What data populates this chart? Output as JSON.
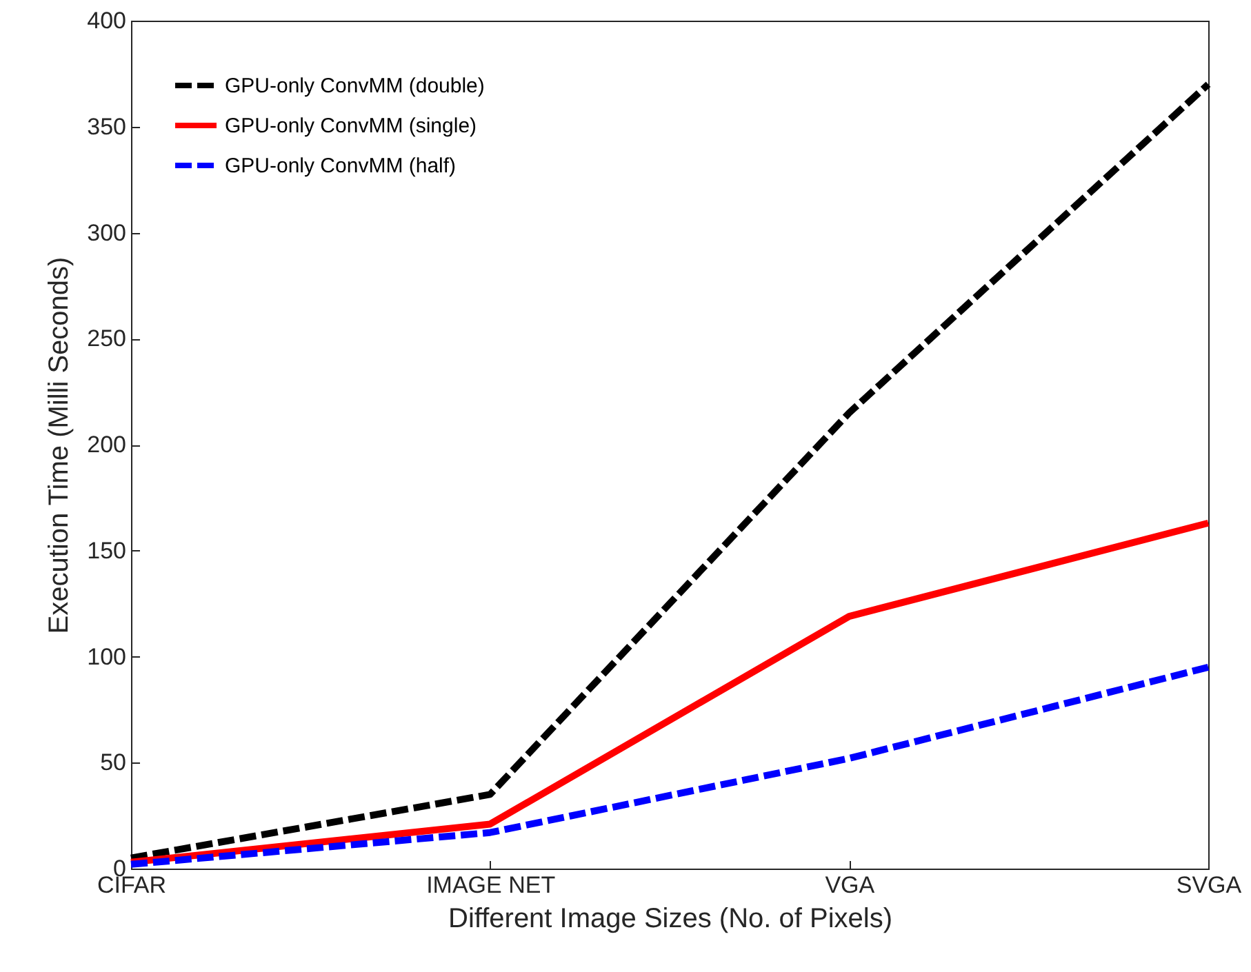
{
  "chart_data": {
    "type": "line",
    "xlabel": "Different Image Sizes (No. of Pixels)",
    "ylabel": "Execution Time (Milli Seconds)",
    "categories": [
      "CIFAR",
      "IMAGE NET",
      "VGA",
      "SVGA"
    ],
    "ylim": [
      0,
      400
    ],
    "yticks": [
      0,
      50,
      100,
      150,
      200,
      250,
      300,
      350,
      400
    ],
    "grid": false,
    "legend": "top left",
    "marker": "none",
    "series": [
      {
        "name": "GPU-only ConvMM (double)",
        "color": "#000000",
        "line_style": "dashed",
        "values": [
          5,
          35,
          215,
          370
        ]
      },
      {
        "name": "GPU-only ConvMM (single)",
        "color": "#ff0000",
        "line_style": "solid",
        "values": [
          3,
          21,
          119,
          163
        ]
      },
      {
        "name": "GPU-only ConvMM (half)",
        "color": "#0000ff",
        "line_style": "dashed",
        "values": [
          2,
          17,
          52,
          95
        ]
      }
    ]
  }
}
